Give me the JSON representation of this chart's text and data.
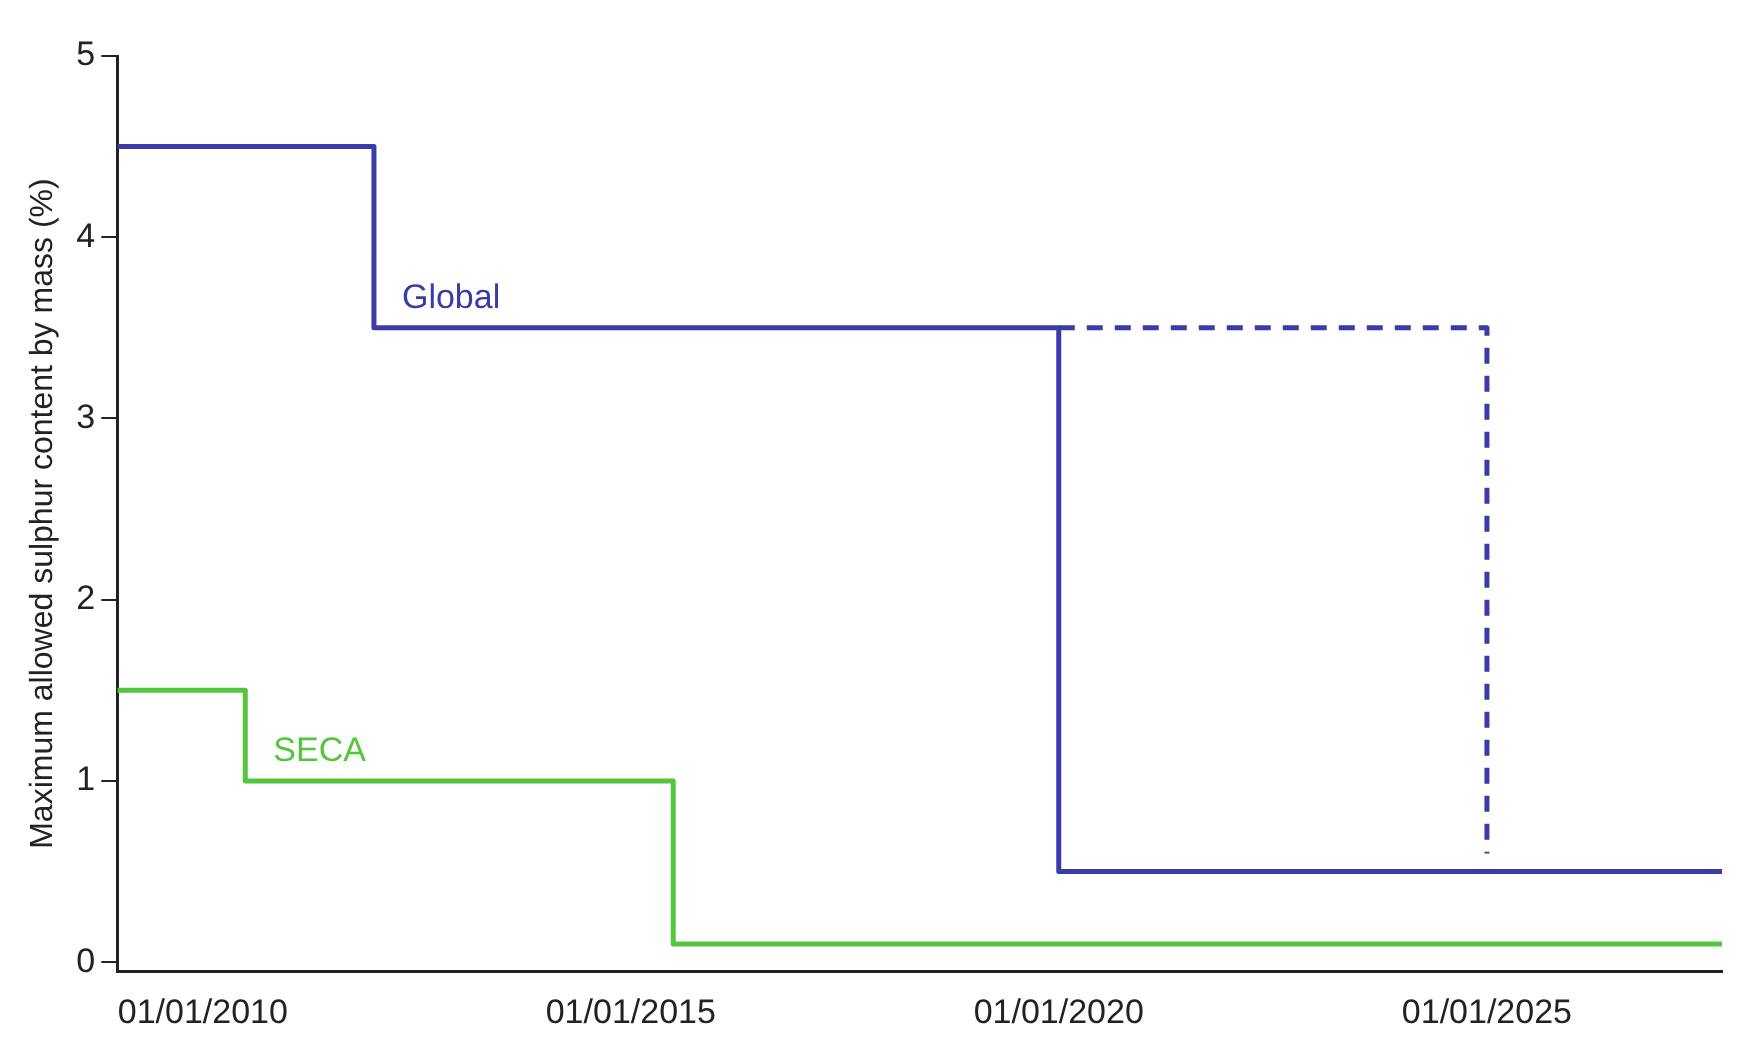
{
  "chart_data": {
    "type": "step",
    "ylabel": "Maximum allowed sulphur content by mass (%)",
    "xlim": [
      "2009-01-01",
      "2027-10-01"
    ],
    "xticks": [
      {
        "value": "2010-01-01",
        "label": "01/01/2010"
      },
      {
        "value": "2015-01-01",
        "label": "01/01/2015"
      },
      {
        "value": "2020-01-01",
        "label": "01/01/2020"
      },
      {
        "value": "2025-01-01",
        "label": "01/01/2025"
      }
    ],
    "ylim": [
      -0.05,
      5
    ],
    "yticks": [
      0,
      1,
      2,
      3,
      4,
      5
    ],
    "grid": false,
    "legend": false,
    "series": [
      {
        "name": "Global",
        "color": "#3b3ba8",
        "x": [
          "2009-01-01",
          "2012-01-01",
          "2020-01-01",
          "2027-10-01"
        ],
        "values": [
          4.5,
          3.5,
          0.5,
          0.5
        ],
        "line_style": "solid"
      },
      {
        "color": "#3b3ba8",
        "x": [
          "2020-01-01",
          "2025-01-01"
        ],
        "values": [
          3.5,
          0.6
        ],
        "line_style": "dashed"
      },
      {
        "name": "SECA",
        "color": "#55c63c",
        "x": [
          "2009-01-01",
          "2010-07-01",
          "2015-07-01",
          "2027-10-01"
        ],
        "values": [
          1.5,
          1.0,
          0.1,
          0.1
        ],
        "line_style": "solid"
      }
    ]
  }
}
